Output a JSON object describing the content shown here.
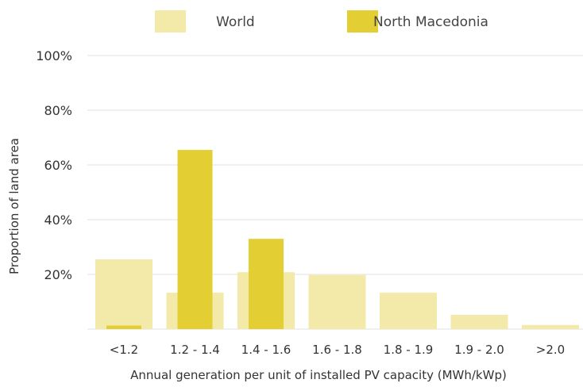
{
  "chart_data": {
    "type": "bar",
    "xlabel": "Annual generation per unit of installed PV capacity (MWh/kWp)",
    "ylabel": "Proportion of land area",
    "ylim": [
      0,
      100
    ],
    "yticks": [
      "20%",
      "40%",
      "60%",
      "80%",
      "100%"
    ],
    "grid": true,
    "legend_position": "top",
    "categories": [
      "<1.2",
      "1.2 - 1.4",
      "1.4 - 1.6",
      "1.6 - 1.8",
      "1.8 - 1.9",
      "1.9 - 2.0",
      ">2.0"
    ],
    "series": [
      {
        "name": "World",
        "color": "#f3e9a8",
        "values": [
          25.5,
          13.3,
          20.8,
          19.8,
          13.3,
          5.2,
          1.5
        ]
      },
      {
        "name": "North Macedonia",
        "color": "#e3cf33",
        "values": [
          1.3,
          65.5,
          33.0,
          0,
          0,
          0,
          0
        ]
      }
    ]
  }
}
